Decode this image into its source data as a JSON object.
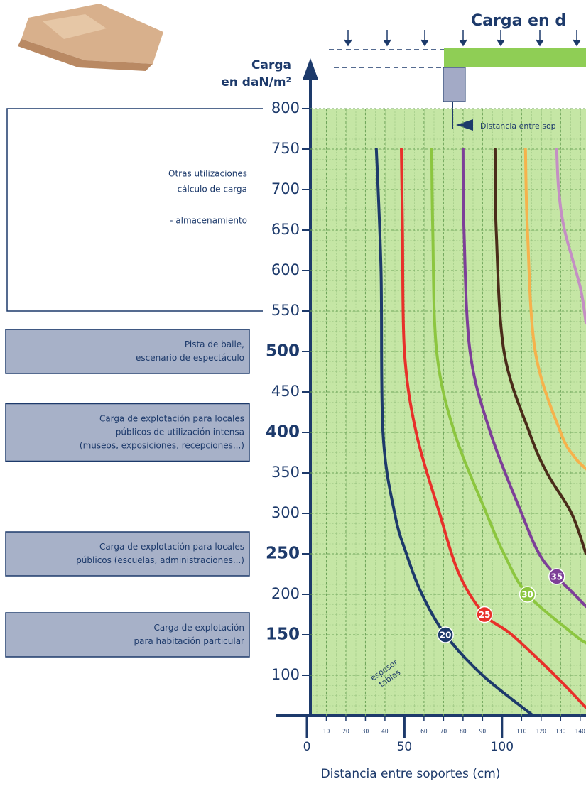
{
  "chart_data": {
    "type": "line",
    "title": "Carga en d",
    "diagram_note": "Distancia entre sop",
    "y_label_lines": [
      "Carga",
      "en daN/m²"
    ],
    "x_label": "Distancia entre soportes (cm)",
    "curve_note_lines": [
      "espesor",
      "tablas"
    ],
    "xlim": [
      0,
      143
    ],
    "ylim": [
      50,
      800
    ],
    "xticks": [
      0,
      50,
      100
    ],
    "xticks_minor": [
      10,
      20,
      30,
      40,
      60,
      70,
      80,
      90,
      110,
      120,
      130,
      140
    ],
    "yticks": [
      100,
      150,
      200,
      250,
      300,
      350,
      400,
      450,
      500,
      550,
      600,
      650,
      700,
      750,
      800
    ],
    "grid": true,
    "series": [
      {
        "name": "20",
        "color": "#1d3a6b",
        "x": [
          35.6,
          38,
          39,
          45,
          51,
          59,
          71,
          90,
          116
        ],
        "values": [
          750,
          600,
          400,
          300,
          250,
          200,
          150,
          100,
          50
        ]
      },
      {
        "name": "25",
        "color": "#e8302a",
        "x": [
          48.4,
          49,
          50,
          56,
          68,
          78,
          91,
          105,
          127,
          143
        ],
        "values": [
          750,
          650,
          500,
          400,
          300,
          225,
          175,
          150,
          100,
          60
        ]
      },
      {
        "name": "30",
        "color": "#8cc63f",
        "x": [
          64,
          64.5,
          66.5,
          75.6,
          92,
          101,
          113,
          137,
          143
        ],
        "values": [
          750,
          650,
          500,
          400,
          300,
          250,
          200,
          150,
          140
        ]
      },
      {
        "name": "35",
        "color": "#7d3f98",
        "x": [
          80,
          80.5,
          83.6,
          94,
          110,
          119,
          128,
          137,
          143
        ],
        "values": [
          750,
          650,
          500,
          400,
          300,
          250,
          222,
          200,
          185
        ]
      },
      {
        "color": "#4a2c1a",
        "x": [
          96.4,
          97,
          101,
          114,
          123,
          135.6,
          143
        ],
        "values": [
          750,
          650,
          500,
          400,
          350,
          300,
          250
        ]
      },
      {
        "color": "#f6b24c",
        "x": [
          112,
          113,
          117,
          130,
          137,
          143
        ],
        "values": [
          750,
          650,
          500,
          400,
          370,
          355
        ]
      },
      {
        "color": "#c48fc4",
        "x": [
          128,
          129,
          132,
          140,
          143
        ],
        "values": [
          750,
          700,
          650,
          580,
          535
        ]
      }
    ],
    "annotations": [
      {
        "range": [
          550,
          800
        ],
        "lines": [
          "Otras utilizaciones",
          "cálculo de carga",
          "",
          "- almacenamiento"
        ]
      },
      {
        "value": 500,
        "lines": [
          "Pista de baile,",
          "escenario de espectáculo"
        ]
      },
      {
        "value": 400,
        "lines": [
          "Carga de explotación para locales",
          "públicos de utilización intensa",
          "(museos, exposiciones, recepciones...)"
        ]
      },
      {
        "value": 250,
        "lines": [
          "Carga de explotación para locales",
          "públicos (escuelas, administraciones...)"
        ]
      },
      {
        "value": 150,
        "lines": [
          "Carga de explotación",
          "para habitación particular"
        ]
      }
    ]
  }
}
